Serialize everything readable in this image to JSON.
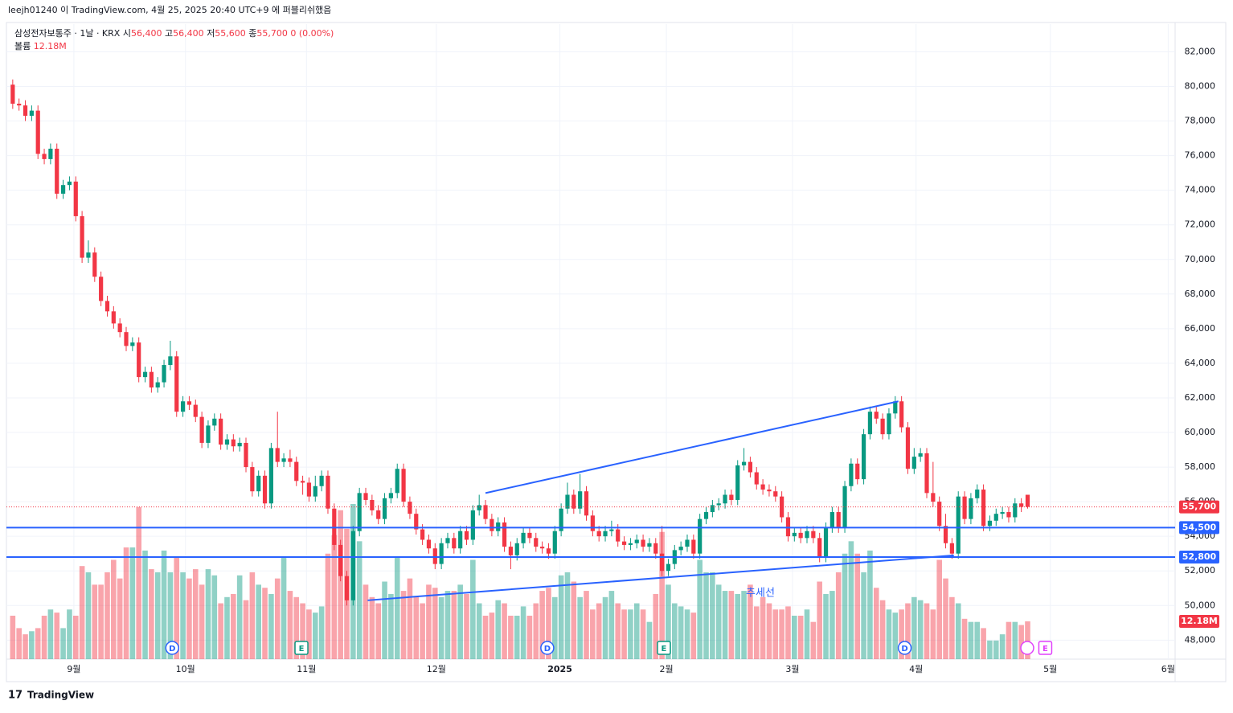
{
  "header": {
    "publish_note": "leejh01240 이 TradingView.com, 4월 25, 2025 20:40 UTC+9 에 퍼블리쉬했음"
  },
  "footer": {
    "brand": "TradingView"
  },
  "chart_data": {
    "type": "candlestick",
    "legend": {
      "symbol": "삼성전자보통주 · 1날 · KRX",
      "ohlc": [
        {
          "label": "시",
          "value": "56,400"
        },
        {
          "label": "고",
          "value": "56,400"
        },
        {
          "label": "저",
          "value": "55,600"
        },
        {
          "label": "종",
          "value": "55,700"
        }
      ],
      "change": "0 (0.00%)",
      "volume_label": "볼륨",
      "volume_value": "12.18M"
    },
    "up_color": "#089981",
    "down_color": "#f23645",
    "xlim": [
      -1,
      184.4
    ],
    "xticks": [
      {
        "value": 9.7,
        "label": "9월"
      },
      {
        "value": 27.4,
        "label": "10월"
      },
      {
        "value": 46.6,
        "label": "11월"
      },
      {
        "value": 67.2,
        "label": "12월"
      },
      {
        "value": 86.8,
        "label": "2025"
      },
      {
        "value": 103.7,
        "label": "2월"
      },
      {
        "value": 123.7,
        "label": "3월"
      },
      {
        "value": 143.3,
        "label": "4월"
      },
      {
        "value": 164.6,
        "label": "5월"
      },
      {
        "value": 183.3,
        "label": "6월"
      }
    ],
    "ylim": [
      46900,
      83600
    ],
    "yticks": [
      {
        "value": 48000,
        "label": "48,000"
      },
      {
        "value": 50000,
        "label": "50,000"
      },
      {
        "value": 52000,
        "label": "52,000"
      },
      {
        "value": 54000,
        "label": "54,000"
      },
      {
        "value": 56000,
        "label": "56,000"
      },
      {
        "value": 58000,
        "label": "58,000"
      },
      {
        "value": 60000,
        "label": "60,000"
      },
      {
        "value": 62000,
        "label": "62,000"
      },
      {
        "value": 64000,
        "label": "64,000"
      },
      {
        "value": 66000,
        "label": "66,000"
      },
      {
        "value": 68000,
        "label": "68,000"
      },
      {
        "value": 70000,
        "label": "70,000"
      },
      {
        "value": 72000,
        "label": "72,000"
      },
      {
        "value": 74000,
        "label": "74,000"
      },
      {
        "value": 76000,
        "label": "76,000"
      },
      {
        "value": 78000,
        "label": "78,000"
      },
      {
        "value": 80000,
        "label": "80,000"
      },
      {
        "value": 82000,
        "label": "82,000"
      }
    ],
    "grid": true,
    "candles": [
      [
        80100,
        80400,
        78700,
        79000
      ],
      [
        79000,
        79300,
        78600,
        78900
      ],
      [
        78900,
        79200,
        78000,
        78300
      ],
      [
        78300,
        78900,
        78000,
        78600
      ],
      [
        78600,
        78900,
        75800,
        76100
      ],
      [
        76100,
        76400,
        75500,
        75800
      ],
      [
        75800,
        76700,
        75500,
        76400
      ],
      [
        76400,
        76700,
        73500,
        73800
      ],
      [
        73800,
        74600,
        73500,
        74300
      ],
      [
        74300,
        74800,
        74000,
        74500
      ],
      [
        74500,
        74800,
        72200,
        72500
      ],
      [
        72500,
        72800,
        69800,
        70100
      ],
      [
        70100,
        71100,
        69800,
        70400
      ],
      [
        70400,
        70700,
        68700,
        69000
      ],
      [
        69000,
        69300,
        67300,
        67600
      ],
      [
        67600,
        67900,
        66700,
        67000
      ],
      [
        67000,
        67300,
        66000,
        66300
      ],
      [
        66300,
        66600,
        65500,
        65800
      ],
      [
        65800,
        66100,
        64700,
        65000
      ],
      [
        65000,
        65500,
        64700,
        65200
      ],
      [
        65200,
        65500,
        62900,
        63200
      ],
      [
        63200,
        63800,
        62900,
        63500
      ],
      [
        63500,
        63800,
        62300,
        62600
      ],
      [
        62600,
        63200,
        62300,
        62900
      ],
      [
        62900,
        64200,
        62600,
        63900
      ],
      [
        63900,
        65300,
        63600,
        64400
      ],
      [
        64400,
        64700,
        60900,
        61200
      ],
      [
        61200,
        62100,
        60900,
        61800
      ],
      [
        61800,
        62100,
        61300,
        61600
      ],
      [
        61600,
        61900,
        60600,
        60900
      ],
      [
        60900,
        61200,
        59100,
        59400
      ],
      [
        59400,
        60700,
        59100,
        60400
      ],
      [
        60400,
        61100,
        60100,
        60800
      ],
      [
        60800,
        61100,
        59000,
        59300
      ],
      [
        59300,
        59900,
        59000,
        59600
      ],
      [
        59600,
        59900,
        58900,
        59200
      ],
      [
        59200,
        59700,
        58900,
        59400
      ],
      [
        59400,
        59700,
        57700,
        58000
      ],
      [
        58000,
        58300,
        56300,
        56600
      ],
      [
        56600,
        57800,
        56300,
        57500
      ],
      [
        57500,
        57800,
        55600,
        55900
      ],
      [
        55900,
        59400,
        55600,
        59100
      ],
      [
        59100,
        61200,
        58000,
        58300
      ],
      [
        58300,
        58800,
        58000,
        58500
      ],
      [
        58500,
        59000,
        58000,
        58300
      ],
      [
        58300,
        58600,
        56900,
        57200
      ],
      [
        57200,
        57500,
        56400,
        57100
      ],
      [
        57100,
        57400,
        56000,
        56300
      ],
      [
        56300,
        57500,
        56000,
        56900
      ],
      [
        56900,
        57800,
        56600,
        57500
      ],
      [
        57500,
        57800,
        55300,
        55600
      ],
      [
        55600,
        55900,
        53200,
        53500
      ],
      [
        53500,
        53800,
        51400,
        51700
      ],
      [
        51700,
        52000,
        50000,
        50300
      ],
      [
        50300,
        54600,
        50000,
        54300
      ],
      [
        54300,
        56800,
        54000,
        56500
      ],
      [
        56500,
        56800,
        55800,
        56100
      ],
      [
        56100,
        56400,
        55200,
        55500
      ],
      [
        55500,
        55800,
        54700,
        55000
      ],
      [
        55000,
        56500,
        54700,
        56200
      ],
      [
        56200,
        56800,
        55900,
        56500
      ],
      [
        56500,
        58200,
        56200,
        57900
      ],
      [
        57900,
        58200,
        55700,
        56000
      ],
      [
        56000,
        56300,
        55000,
        55300
      ],
      [
        55300,
        55600,
        54100,
        54400
      ],
      [
        54400,
        54700,
        53500,
        53800
      ],
      [
        53800,
        54100,
        53000,
        53300
      ],
      [
        53300,
        53600,
        52100,
        52400
      ],
      [
        52400,
        53900,
        52100,
        53600
      ],
      [
        53600,
        54200,
        53300,
        53900
      ],
      [
        53900,
        54200,
        53000,
        53300
      ],
      [
        53300,
        54600,
        53000,
        54300
      ],
      [
        54300,
        54600,
        53500,
        53800
      ],
      [
        53800,
        55800,
        53500,
        55500
      ],
      [
        55500,
        56400,
        55200,
        55800
      ],
      [
        55800,
        56100,
        54700,
        55000
      ],
      [
        55000,
        55300,
        54000,
        54300
      ],
      [
        54300,
        55100,
        54000,
        54800
      ],
      [
        54800,
        55100,
        53100,
        53400
      ],
      [
        53400,
        53700,
        52100,
        52900
      ],
      [
        52900,
        53900,
        52600,
        53600
      ],
      [
        53600,
        54500,
        53300,
        54200
      ],
      [
        54200,
        54500,
        53600,
        53900
      ],
      [
        53900,
        54200,
        53100,
        53400
      ],
      [
        53400,
        53700,
        53000,
        53300
      ],
      [
        53300,
        53600,
        52700,
        53000
      ],
      [
        53000,
        54600,
        52700,
        54300
      ],
      [
        54300,
        55900,
        54000,
        55600
      ],
      [
        55600,
        57100,
        55300,
        56400
      ],
      [
        56400,
        56700,
        55300,
        55600
      ],
      [
        55600,
        57600,
        55300,
        56600
      ],
      [
        56600,
        56900,
        54900,
        55200
      ],
      [
        55200,
        55500,
        54000,
        54300
      ],
      [
        54300,
        54600,
        53700,
        54000
      ],
      [
        54000,
        54600,
        53700,
        54300
      ],
      [
        54300,
        54900,
        54000,
        54400
      ],
      [
        54400,
        54700,
        53400,
        53700
      ],
      [
        53700,
        54000,
        53200,
        53500
      ],
      [
        53500,
        53900,
        53200,
        53600
      ],
      [
        53600,
        54100,
        53300,
        53800
      ],
      [
        53800,
        54100,
        53100,
        53400
      ],
      [
        53400,
        53900,
        53100,
        53600
      ],
      [
        53600,
        53900,
        52700,
        53000
      ],
      [
        53000,
        54600,
        51700,
        52000
      ],
      [
        52000,
        52700,
        51700,
        52400
      ],
      [
        52400,
        53500,
        52100,
        53200
      ],
      [
        53200,
        53700,
        52900,
        53400
      ],
      [
        53400,
        54100,
        53100,
        53800
      ],
      [
        53800,
        54100,
        52700,
        53000
      ],
      [
        53000,
        55300,
        52700,
        55000
      ],
      [
        55000,
        55700,
        54700,
        55400
      ],
      [
        55400,
        56100,
        55100,
        55800
      ],
      [
        55800,
        56200,
        55500,
        55900
      ],
      [
        55900,
        56700,
        55600,
        56400
      ],
      [
        56400,
        56700,
        55800,
        56100
      ],
      [
        56100,
        58400,
        55800,
        58100
      ],
      [
        58100,
        59100,
        57800,
        58300
      ],
      [
        58300,
        58600,
        57400,
        57700
      ],
      [
        57700,
        58000,
        56700,
        57000
      ],
      [
        57000,
        57300,
        56400,
        56700
      ],
      [
        56700,
        57000,
        56300,
        56600
      ],
      [
        56600,
        56900,
        56000,
        56300
      ],
      [
        56300,
        56600,
        54800,
        55100
      ],
      [
        55100,
        55400,
        53700,
        54000
      ],
      [
        54000,
        54500,
        53700,
        54200
      ],
      [
        54200,
        54500,
        53600,
        53900
      ],
      [
        53900,
        54600,
        53600,
        54300
      ],
      [
        54300,
        54600,
        53600,
        53900
      ],
      [
        53900,
        54200,
        52500,
        52800
      ],
      [
        52800,
        54800,
        52500,
        54500
      ],
      [
        54500,
        55700,
        54200,
        55400
      ],
      [
        55400,
        55700,
        54200,
        54500
      ],
      [
        54500,
        57200,
        54200,
        56900
      ],
      [
        56900,
        58500,
        56600,
        58200
      ],
      [
        58200,
        58500,
        57000,
        57300
      ],
      [
        57300,
        60200,
        57000,
        59900
      ],
      [
        59900,
        61500,
        59600,
        61200
      ],
      [
        61200,
        61500,
        60500,
        60800
      ],
      [
        60800,
        61100,
        59600,
        59900
      ],
      [
        59900,
        61400,
        59600,
        61100
      ],
      [
        61100,
        62100,
        60800,
        61800
      ],
      [
        61800,
        62100,
        60000,
        60300
      ],
      [
        60300,
        60600,
        57600,
        57900
      ],
      [
        57900,
        59100,
        57600,
        58600
      ],
      [
        58600,
        59100,
        58300,
        58800
      ],
      [
        58800,
        59100,
        56200,
        56500
      ],
      [
        56500,
        58300,
        55700,
        56000
      ],
      [
        56000,
        56300,
        54300,
        54600
      ],
      [
        54600,
        55300,
        53300,
        53600
      ],
      [
        53600,
        53900,
        52700,
        53000
      ],
      [
        53000,
        56600,
        52700,
        56300
      ],
      [
        56300,
        56600,
        54700,
        55000
      ],
      [
        55000,
        56500,
        54700,
        56200
      ],
      [
        56200,
        57000,
        55900,
        56700
      ],
      [
        56700,
        57000,
        54300,
        54600
      ],
      [
        54600,
        55200,
        54300,
        54900
      ],
      [
        54900,
        55600,
        54600,
        55300
      ],
      [
        55300,
        55700,
        55000,
        55400
      ],
      [
        55400,
        55700,
        54800,
        55100
      ],
      [
        55100,
        56200,
        54800,
        55900
      ],
      [
        55900,
        56200,
        55400,
        55700
      ],
      [
        56400,
        56400,
        55600,
        55700
      ]
    ],
    "volume": {
      "values": [
        14,
        10,
        8,
        9,
        10,
        14,
        16,
        15,
        10,
        16,
        14,
        30,
        28,
        24,
        24,
        28,
        32,
        26,
        36,
        36,
        49,
        35,
        29,
        28,
        35,
        28,
        33,
        28,
        26,
        29,
        24,
        29,
        27,
        18,
        20,
        21,
        27,
        19,
        28,
        24,
        23,
        21,
        26,
        33,
        22,
        20,
        18,
        16,
        15,
        17,
        34,
        40,
        48,
        42,
        50,
        38,
        24,
        20,
        18,
        25,
        21,
        33,
        22,
        26,
        20,
        18,
        24,
        23,
        20,
        22,
        22,
        24,
        21,
        32,
        18,
        14,
        15,
        19,
        18,
        14,
        14,
        17,
        14,
        18,
        22,
        23,
        20,
        27,
        28,
        25,
        20,
        22,
        16,
        18,
        20,
        22,
        18,
        16,
        16,
        18,
        16,
        12,
        21,
        41,
        24,
        18,
        17,
        16,
        15,
        32,
        28,
        28,
        24,
        22,
        22,
        21,
        22,
        24,
        17,
        20,
        18,
        16,
        16,
        17,
        14,
        14,
        16,
        12,
        25,
        21,
        22,
        28,
        34,
        38,
        34,
        28,
        35,
        23,
        19,
        16,
        15,
        16,
        18,
        20,
        19,
        18,
        16,
        32,
        26,
        20,
        18,
        13,
        12,
        12,
        10,
        6,
        6,
        8,
        12,
        12,
        11,
        12.18
      ],
      "value_label": "12.18M"
    },
    "last_price": {
      "value": 55700,
      "label": "55,700"
    },
    "hlines": [
      {
        "value": 54500,
        "label": "54,500",
        "color": "#2962ff"
      },
      {
        "value": 52800,
        "label": "52,800",
        "color": "#2962ff"
      }
    ],
    "trendlines": [
      {
        "x": [
          75,
          140.5
        ],
        "y": [
          56500,
          61800
        ],
        "color": "#2962ff"
      },
      {
        "x": [
          56.3,
          149.3
        ],
        "y": [
          50300,
          52900
        ],
        "color": "#2962ff",
        "label": "추세선"
      }
    ],
    "events": [
      {
        "label": "D",
        "x": 25.3,
        "color": "#2962ff"
      },
      {
        "label": "E",
        "x": 45.8,
        "color": "#089981"
      },
      {
        "label": "D",
        "x": 84.8,
        "color": "#2962ff"
      },
      {
        "label": "E",
        "x": 103.3,
        "color": "#089981"
      },
      {
        "label": "D",
        "x": 141.5,
        "color": "#2962ff"
      },
      {
        "label": "E",
        "x": 163.8,
        "color": "#e040fb"
      }
    ]
  }
}
